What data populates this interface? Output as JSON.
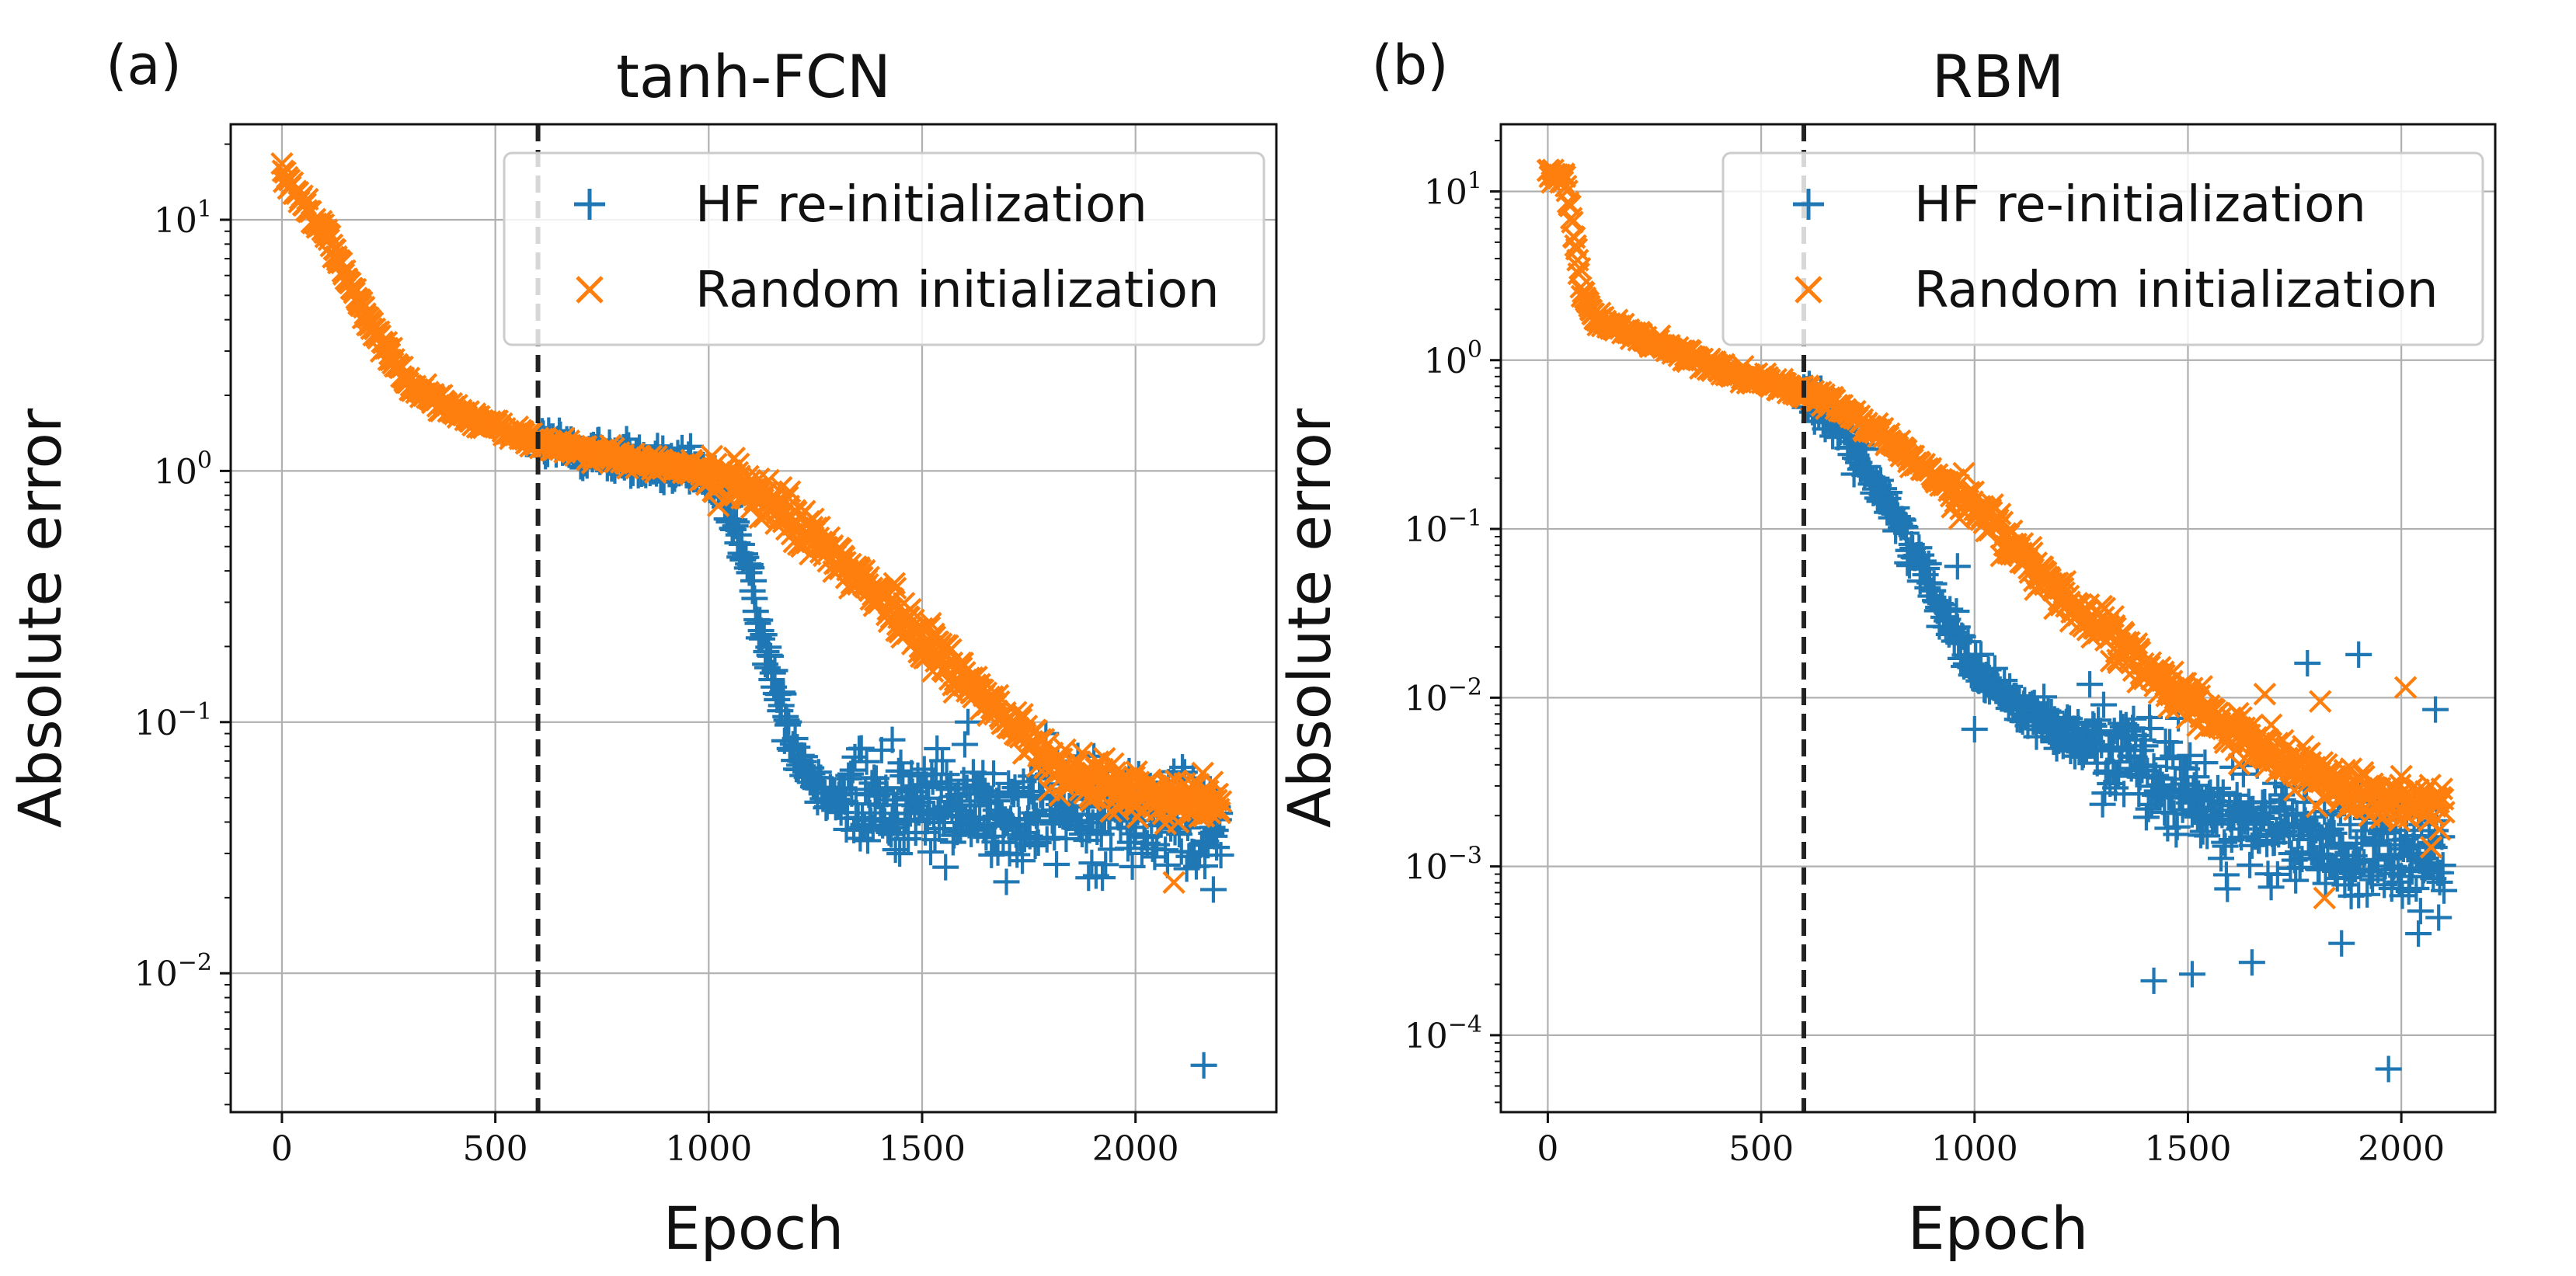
{
  "chart_data": [
    {
      "panel_label": "(a)",
      "type": "scatter",
      "title": "tanh-FCN",
      "xlabel": "Epoch",
      "ylabel": "Absolute error",
      "x_scale": "linear",
      "y_scale": "log",
      "xlim": [
        -120,
        2330
      ],
      "ylim": [
        0.0028,
        24
      ],
      "x_ticks": [
        0,
        500,
        1000,
        1500,
        2000
      ],
      "x_tick_labels": [
        "0",
        "500",
        "1000",
        "1500",
        "2000"
      ],
      "y_ticks": [
        0.01,
        0.1,
        1,
        10
      ],
      "y_tick_labels": [
        {
          "base": "10",
          "exp": "−2"
        },
        {
          "base": "10",
          "exp": "−1"
        },
        {
          "base": "10",
          "exp": "0"
        },
        {
          "base": "10",
          "exp": "1"
        }
      ],
      "grid": true,
      "vline_x": 600,
      "legend_position": "top-right",
      "legend_entries": [
        "HF re-initialization",
        "Random initialization"
      ],
      "series": [
        {
          "name": "HF re-initialization",
          "marker": "+",
          "color": "#1f77b4",
          "curve": [
            [
              0,
              16
            ],
            [
              600,
              1.3
            ],
            [
              1000,
              0.95
            ],
            [
              1050,
              0.7
            ],
            [
              1100,
              0.35
            ],
            [
              1150,
              0.15
            ],
            [
              1200,
              0.08
            ],
            [
              1250,
              0.058
            ],
            [
              1300,
              0.05
            ],
            [
              1500,
              0.046
            ],
            [
              1800,
              0.045
            ],
            [
              2000,
              0.042
            ],
            [
              2200,
              0.04
            ]
          ],
          "range": [
            600,
            2200
          ],
          "noise": 0.22,
          "outliers": [
            [
              1360,
              0.038
            ],
            [
              1430,
              0.085
            ],
            [
              1890,
              0.024
            ],
            [
              2160,
              0.0043
            ]
          ]
        },
        {
          "name": "Random initialization",
          "marker": "x",
          "color": "#ff7f0e",
          "curve": [
            [
              0,
              15.5
            ],
            [
              100,
              9
            ],
            [
              200,
              4
            ],
            [
              300,
              2.2
            ],
            [
              400,
              1.75
            ],
            [
              500,
              1.5
            ],
            [
              600,
              1.3
            ],
            [
              800,
              1.12
            ],
            [
              1000,
              0.98
            ],
            [
              1100,
              0.85
            ],
            [
              1200,
              0.62
            ],
            [
              1300,
              0.45
            ],
            [
              1400,
              0.32
            ],
            [
              1500,
              0.22
            ],
            [
              1600,
              0.15
            ],
            [
              1700,
              0.1
            ],
            [
              1800,
              0.07
            ],
            [
              1900,
              0.057
            ],
            [
              2000,
              0.052
            ],
            [
              2100,
              0.05
            ],
            [
              2200,
              0.05
            ]
          ],
          "range": [
            0,
            2200
          ],
          "noise": 0.09,
          "outliers": [
            [
              2090,
              0.023
            ],
            [
              2100,
              0.04
            ],
            [
              2150,
              0.042
            ]
          ]
        }
      ]
    },
    {
      "panel_label": "(b)",
      "type": "scatter",
      "title": "RBM",
      "xlabel": "Epoch",
      "ylabel": "Absolute error",
      "x_scale": "linear",
      "y_scale": "log",
      "xlim": [
        -110,
        2220
      ],
      "ylim": [
        3.5e-05,
        25
      ],
      "x_ticks": [
        0,
        500,
        1000,
        1500,
        2000
      ],
      "x_tick_labels": [
        "0",
        "500",
        "1000",
        "1500",
        "2000"
      ],
      "y_ticks": [
        0.0001,
        0.001,
        0.01,
        0.1,
        1,
        10
      ],
      "y_tick_labels": [
        {
          "base": "10",
          "exp": "−4"
        },
        {
          "base": "10",
          "exp": "−3"
        },
        {
          "base": "10",
          "exp": "−2"
        },
        {
          "base": "10",
          "exp": "−1"
        },
        {
          "base": "10",
          "exp": "0"
        },
        {
          "base": "10",
          "exp": "1"
        }
      ],
      "grid": true,
      "vline_x": 600,
      "legend_position": "top-right",
      "legend_entries": [
        "HF re-initialization",
        "Random initialization"
      ],
      "series": [
        {
          "name": "HF re-initialization",
          "marker": "+",
          "color": "#1f77b4",
          "curve": [
            [
              0,
              13
            ],
            [
              600,
              0.65
            ],
            [
              700,
              0.35
            ],
            [
              800,
              0.14
            ],
            [
              900,
              0.045
            ],
            [
              1000,
              0.015
            ],
            [
              1100,
              0.009
            ],
            [
              1200,
              0.0065
            ],
            [
              1300,
              0.005
            ],
            [
              1400,
              0.0035
            ],
            [
              1500,
              0.0026
            ],
            [
              1600,
              0.002
            ],
            [
              1700,
              0.0016
            ],
            [
              1800,
              0.0014
            ],
            [
              1900,
              0.0012
            ],
            [
              2000,
              0.0011
            ],
            [
              2100,
              0.001
            ]
          ],
          "range": [
            600,
            2100
          ],
          "noise": 0.3,
          "outliers": [
            [
              960,
              0.06
            ],
            [
              1000,
              0.0065
            ],
            [
              1270,
              0.012
            ],
            [
              1420,
              0.00021
            ],
            [
              1510,
              0.00023
            ],
            [
              1650,
              0.00027
            ],
            [
              1780,
              0.016
            ],
            [
              1860,
              0.00035
            ],
            [
              1900,
              0.018
            ],
            [
              1970,
              6.3e-05
            ],
            [
              2040,
              0.0004
            ],
            [
              2080,
              0.0085
            ]
          ]
        },
        {
          "name": "Random initialization",
          "marker": "x",
          "color": "#ff7f0e",
          "curve": [
            [
              0,
              13
            ],
            [
              40,
              12
            ],
            [
              60,
              6
            ],
            [
              80,
              2.6
            ],
            [
              110,
              1.8
            ],
            [
              200,
              1.4
            ],
            [
              400,
              0.9
            ],
            [
              600,
              0.65
            ],
            [
              700,
              0.5
            ],
            [
              800,
              0.34
            ],
            [
              900,
              0.21
            ],
            [
              1000,
              0.13
            ],
            [
              1100,
              0.075
            ],
            [
              1200,
              0.042
            ],
            [
              1300,
              0.025
            ],
            [
              1400,
              0.015
            ],
            [
              1500,
              0.0095
            ],
            [
              1600,
              0.0065
            ],
            [
              1700,
              0.0046
            ],
            [
              1800,
              0.0034
            ],
            [
              1900,
              0.0028
            ],
            [
              2000,
              0.0025
            ],
            [
              2100,
              0.0024
            ]
          ],
          "range": [
            0,
            2100
          ],
          "noise": 0.12,
          "outliers": [
            [
              1680,
              0.0105
            ],
            [
              1810,
              0.0095
            ],
            [
              1820,
              0.00065
            ],
            [
              2010,
              0.0115
            ],
            [
              2070,
              0.0013
            ]
          ]
        }
      ]
    }
  ]
}
